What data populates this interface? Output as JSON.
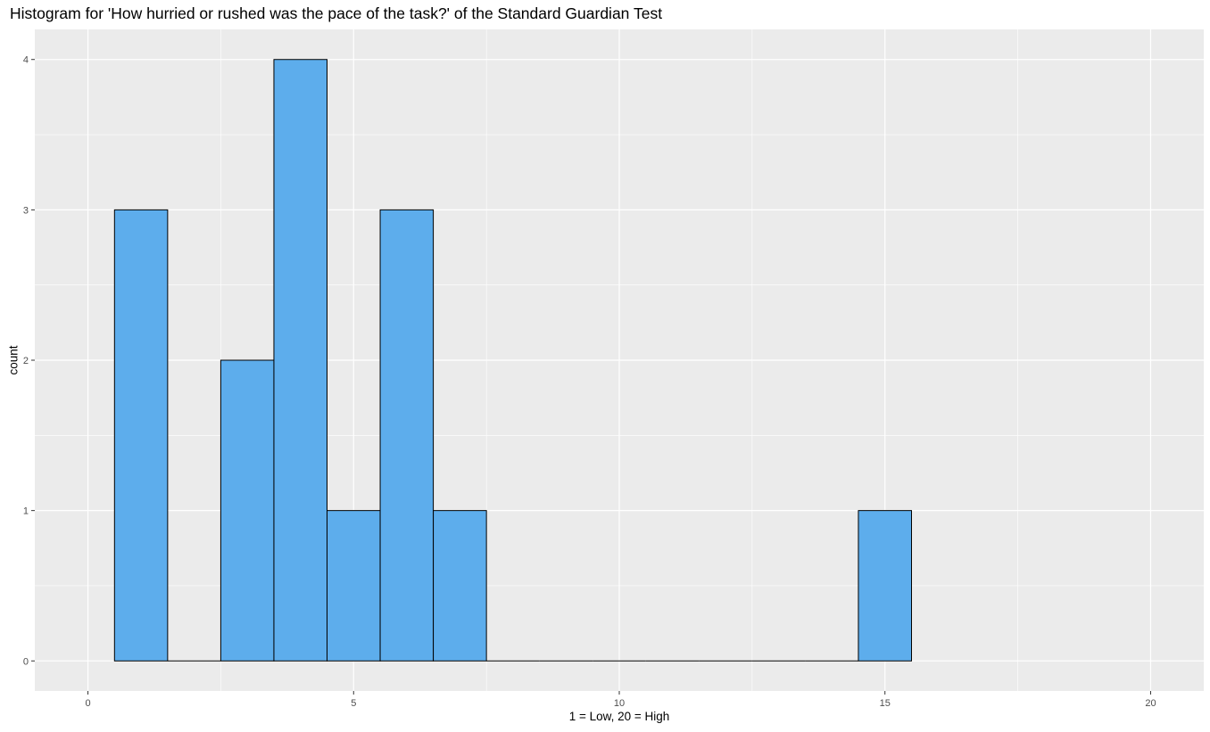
{
  "chart_data": {
    "type": "bar",
    "title": "Histogram for 'How hurried or rushed was the pace of the task?' of the Standard Guardian Test",
    "xlabel": "1 = Low, 20 = High",
    "ylabel": "count",
    "bin_width": 1,
    "bins": [
      {
        "x": 1,
        "count": 3
      },
      {
        "x": 2,
        "count": 0
      },
      {
        "x": 3,
        "count": 2
      },
      {
        "x": 4,
        "count": 4
      },
      {
        "x": 5,
        "count": 1
      },
      {
        "x": 6,
        "count": 3
      },
      {
        "x": 7,
        "count": 1
      },
      {
        "x": 8,
        "count": 0
      },
      {
        "x": 9,
        "count": 0
      },
      {
        "x": 10,
        "count": 0
      },
      {
        "x": 11,
        "count": 0
      },
      {
        "x": 12,
        "count": 0
      },
      {
        "x": 13,
        "count": 0
      },
      {
        "x": 14,
        "count": 0
      },
      {
        "x": 15,
        "count": 1
      }
    ],
    "xlim": [
      -1,
      21
    ],
    "ylim": [
      -0.2,
      4.2
    ],
    "x_ticks": [
      0,
      5,
      10,
      15,
      20
    ],
    "x_tick_labels": [
      "0",
      "5",
      "10",
      "15",
      "20"
    ],
    "y_ticks": [
      0,
      1,
      2,
      3,
      4
    ],
    "y_tick_labels": [
      "0",
      "1",
      "2",
      "3",
      "4"
    ],
    "grid": true,
    "colors": {
      "bar_fill": "#5DADEC",
      "bar_outline": "#000000",
      "panel_background": "#EBEBEB",
      "grid": "#FFFFFF"
    }
  }
}
